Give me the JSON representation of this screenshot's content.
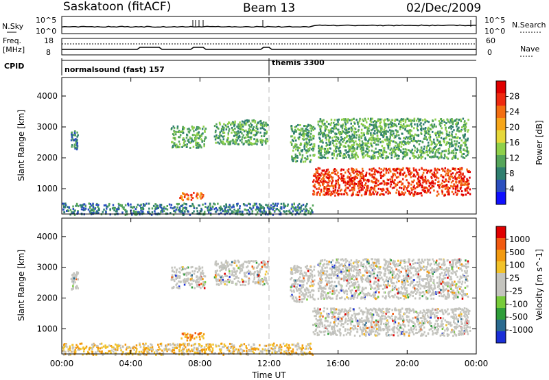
{
  "header": {
    "station": "Saskatoon (fitACF)",
    "beam": "Beam 13",
    "date": "02/Dec/2009"
  },
  "top_panel": {
    "left_label": "N.Sky",
    "left_ticks": [
      "10^5",
      "10^0"
    ],
    "right_label": "N.Search",
    "right_ticks": [
      "10^5",
      "10^0"
    ]
  },
  "freq_panel": {
    "left_label_1": "Freq.",
    "left_label_2": "[MHz]",
    "left_ticks": [
      "18",
      "8"
    ],
    "right_label": "Nave",
    "right_ticks": [
      "60",
      "0"
    ]
  },
  "cpid_panel": {
    "label": "CPID",
    "segments": [
      "normalsound (fast) 157",
      "themis 3300"
    ]
  },
  "chart_data": [
    {
      "type": "heatmap",
      "title": "",
      "xlabel": "Time UT",
      "ylabel": "Slant Range [km]",
      "x_ticks": [
        "00:00",
        "04:00",
        "08:00",
        "12:00",
        "16:00",
        "20:00",
        "00:00"
      ],
      "y_ticks": [
        "1000",
        "2000",
        "3000",
        "4000"
      ],
      "xlim_hours": [
        0,
        24
      ],
      "ylim_km": [
        180,
        4600
      ],
      "colorbar": {
        "label": "Power [dB]",
        "ticks": [
          "4",
          "8",
          "12",
          "16",
          "20",
          "24",
          "28"
        ],
        "colors": [
          "#1010ff",
          "#2b4fbf",
          "#2f7f6f",
          "#55a55a",
          "#8fd04a",
          "#e6d83a",
          "#f6a61a",
          "#f36e12",
          "#ee2a10",
          "#e00000"
        ]
      },
      "regions": [
        {
          "t0": 0.0,
          "t1": 14.5,
          "r0": 180,
          "r1": 550,
          "level": 2,
          "note": "near-range band"
        },
        {
          "t0": 0.5,
          "t1": 0.9,
          "r0": 2300,
          "r1": 2900,
          "level": 2
        },
        {
          "t0": 6.3,
          "t1": 8.3,
          "r0": 2350,
          "r1": 3050,
          "level": 3
        },
        {
          "t0": 8.8,
          "t1": 11.9,
          "r0": 2450,
          "r1": 3250,
          "level": 3
        },
        {
          "t0": 6.8,
          "t1": 8.2,
          "r0": 650,
          "r1": 900,
          "level": 7
        },
        {
          "t0": 13.2,
          "t1": 14.6,
          "r0": 1900,
          "r1": 3100,
          "level": 3
        },
        {
          "t0": 14.5,
          "t1": 23.6,
          "r0": 800,
          "r1": 1700,
          "level": 8
        },
        {
          "t0": 14.8,
          "t1": 23.5,
          "r0": 2000,
          "r1": 3300,
          "level": 3
        }
      ]
    },
    {
      "type": "heatmap",
      "title": "",
      "xlabel": "Time UT",
      "ylabel": "Slant Range [km]",
      "x_ticks": [
        "00:00",
        "04:00",
        "08:00",
        "12:00",
        "16:00",
        "20:00",
        "00:00"
      ],
      "y_ticks": [
        "1000",
        "2000",
        "3000",
        "4000"
      ],
      "xlim_hours": [
        0,
        24
      ],
      "ylim_km": [
        180,
        4600
      ],
      "colorbar": {
        "label": "Velocity [m s^-1]",
        "ticks": [
          "1000",
          "500",
          "100",
          "25",
          "-25",
          "-100",
          "-500",
          "-1000"
        ],
        "colors": [
          "#1a2fd8",
          "#2a6a8f",
          "#2f9e3a",
          "#77cc3a",
          "#c4c4be",
          "#c4c4be",
          "#f2c22a",
          "#f29a10",
          "#f25a10",
          "#e00000"
        ]
      },
      "regions": [
        {
          "t0": 0.0,
          "t1": 14.5,
          "r0": 180,
          "r1": 550,
          "level": 6,
          "note": "near-range band"
        },
        {
          "t0": 0.5,
          "t1": 0.9,
          "r0": 2300,
          "r1": 2900,
          "level": 4
        },
        {
          "t0": 6.3,
          "t1": 8.3,
          "r0": 2350,
          "r1": 3050,
          "level": 4
        },
        {
          "t0": 8.8,
          "t1": 11.9,
          "r0": 2450,
          "r1": 3250,
          "level": 4
        },
        {
          "t0": 6.8,
          "t1": 8.2,
          "r0": 650,
          "r1": 900,
          "level": 7
        },
        {
          "t0": 13.2,
          "t1": 14.6,
          "r0": 1900,
          "r1": 3100,
          "level": 4
        },
        {
          "t0": 14.5,
          "t1": 23.6,
          "r0": 800,
          "r1": 1700,
          "level": 4
        },
        {
          "t0": 14.8,
          "t1": 23.5,
          "r0": 2000,
          "r1": 3300,
          "level": 4
        }
      ]
    }
  ]
}
